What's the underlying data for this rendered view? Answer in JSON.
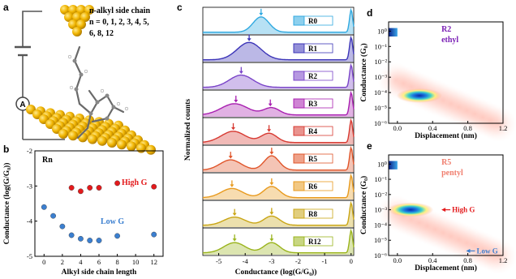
{
  "panels": {
    "a": {
      "label": "a",
      "caption_lines": [
        "n-alkyl side chain",
        "n = 0, 1, 2, 3, 4, 5,",
        "6, 8, 12"
      ],
      "circuit_label": "A"
    },
    "b": {
      "label": "b"
    },
    "c": {
      "label": "c"
    },
    "d": {
      "label": "d"
    },
    "e": {
      "label": "e"
    }
  },
  "colors": {
    "high_g": "#e31a1c",
    "low_g": "#3b7fd0",
    "purple": "#7a1fb5",
    "salmon": "#f07e6e"
  },
  "chart_data": [
    {
      "id": "b",
      "type": "scatter",
      "annotation": "Rn",
      "xlabel": "Alkyl side chain length",
      "ylabel": "Conductance (log(G/G₀))",
      "xlim": [
        -1,
        13
      ],
      "ylim": [
        -5,
        -2
      ],
      "xticks": [
        0,
        2,
        4,
        6,
        8,
        10,
        12
      ],
      "yticks": [
        -2,
        -3,
        -4,
        -5
      ],
      "series": [
        {
          "name": "High G",
          "color": "#e31a1c",
          "x": [
            3,
            4,
            5,
            6,
            8,
            12
          ],
          "y": [
            -3.05,
            -3.15,
            -3.05,
            -3.05,
            -2.92,
            -3.02
          ]
        },
        {
          "name": "Low G",
          "color": "#3b7fd0",
          "x": [
            0,
            1,
            2,
            3,
            4,
            5,
            6,
            8,
            12
          ],
          "y": [
            -3.6,
            -3.85,
            -4.15,
            -4.4,
            -4.5,
            -4.55,
            -4.55,
            -4.42,
            -4.38
          ]
        }
      ]
    },
    {
      "id": "c",
      "type": "line",
      "xlabel": "Conductance (log(G/G₀))",
      "ylabel": "Normalized counts",
      "xlim": [
        -5.6,
        0.1
      ],
      "xticks": [
        -5,
        -4,
        -3,
        -2,
        -1,
        0
      ],
      "series": [
        {
          "name": "R0",
          "color": "#30a9e0",
          "peaks": [
            [
              -3.4,
              0.75,
              0.3
            ]
          ],
          "arrows": [
            -3.4
          ]
        },
        {
          "name": "R1",
          "color": "#3c35b8",
          "peaks": [
            [
              -3.85,
              0.85,
              0.45
            ]
          ],
          "arrows": [
            -3.85
          ]
        },
        {
          "name": "R2",
          "color": "#7a44c8",
          "peaks": [
            [
              -4.15,
              0.6,
              0.45
            ]
          ],
          "arrows": [
            -4.15
          ]
        },
        {
          "name": "R3",
          "color": "#a81fb0",
          "peaks": [
            [
              -4.4,
              0.55,
              0.5
            ],
            [
              -3.0,
              0.35,
              0.3
            ]
          ],
          "arrows": [
            -4.35,
            -3.05
          ]
        },
        {
          "name": "R4",
          "color": "#d73a32",
          "peaks": [
            [
              -4.45,
              0.55,
              0.45
            ],
            [
              -3.1,
              0.45,
              0.3
            ]
          ],
          "arrows": [
            -4.45,
            -3.1
          ]
        },
        {
          "name": "R5",
          "color": "#e0552a",
          "peaks": [
            [
              -4.55,
              0.5,
              0.4
            ],
            [
              -3.0,
              0.7,
              0.28
            ]
          ],
          "arrows": [
            -4.55,
            -3.0
          ]
        },
        {
          "name": "R6",
          "color": "#e89a1e",
          "peaks": [
            [
              -4.5,
              0.45,
              0.4
            ],
            [
              -3.0,
              0.55,
              0.3
            ]
          ],
          "arrows": [
            -4.5,
            -3.0
          ]
        },
        {
          "name": "R8",
          "color": "#c9a514",
          "peaks": [
            [
              -4.4,
              0.4,
              0.4
            ],
            [
              -3.0,
              0.45,
              0.3
            ]
          ],
          "arrows": [
            -4.4,
            -3.0
          ]
        },
        {
          "name": "R12",
          "color": "#9ab41c",
          "peaks": [
            [
              -4.4,
              0.5,
              0.4
            ],
            [
              -3.0,
              0.5,
              0.3
            ]
          ],
          "arrows": [
            -4.4,
            -3.0
          ]
        }
      ]
    },
    {
      "id": "d",
      "type": "heatmap",
      "title": "R2",
      "subtitle": "ethyl",
      "xlabel": "Displacement (nm)",
      "ylabel": "Conductance (G₀)",
      "xlim": [
        -0.1,
        1.2
      ],
      "ylim_log10": [
        -6,
        0.6
      ],
      "xticks": [
        "0.0",
        "0.4",
        "0.8",
        "1.2"
      ],
      "yticks": [
        "10⁰",
        "10⁻¹",
        "10⁻²",
        "10⁻³",
        "10⁻⁴",
        "10⁻⁵",
        "10⁻⁶"
      ],
      "features": [
        {
          "kind": "hot-spot",
          "x": 0.25,
          "log10G": -4.2
        }
      ]
    },
    {
      "id": "e",
      "type": "heatmap",
      "title": "R5",
      "subtitle": "pentyl",
      "xlabel": "Displacement (nm)",
      "ylabel": "Conductance (G₀)",
      "xlim": [
        -0.1,
        1.2
      ],
      "ylim_log10": [
        -6,
        0.6
      ],
      "xticks": [
        "0.0",
        "0.4",
        "0.8",
        "1.2"
      ],
      "yticks": [
        "10⁰",
        "10⁻¹",
        "10⁻²",
        "10⁻³",
        "10⁻⁴",
        "10⁻⁵",
        "10⁻⁶"
      ],
      "annotations": [
        {
          "text": "High G",
          "log10G": -3.0
        },
        {
          "text": "Low G",
          "log10G": -5.7
        }
      ],
      "features": [
        {
          "kind": "hot-spot",
          "x": 0.15,
          "log10G": -3.0
        }
      ]
    }
  ]
}
